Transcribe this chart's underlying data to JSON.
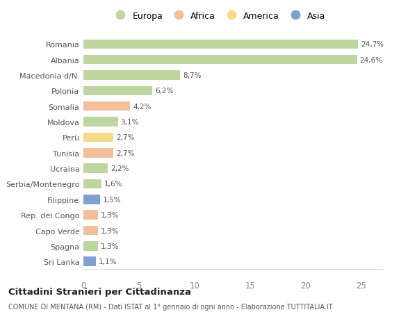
{
  "countries": [
    "Sri Lanka",
    "Spagna",
    "Capo Verde",
    "Rep. del Congo",
    "Filippine",
    "Serbia/Montenegro",
    "Ucraina",
    "Tunisia",
    "Perù",
    "Moldova",
    "Somalia",
    "Polonia",
    "Macedonia d/N.",
    "Albania",
    "Romania"
  ],
  "values": [
    1.1,
    1.3,
    1.3,
    1.3,
    1.5,
    1.6,
    2.2,
    2.7,
    2.7,
    3.1,
    4.2,
    6.2,
    8.7,
    24.6,
    24.7
  ],
  "labels": [
    "1,1%",
    "1,3%",
    "1,3%",
    "1,3%",
    "1,5%",
    "1,6%",
    "2,2%",
    "2,7%",
    "2,7%",
    "3,1%",
    "4,2%",
    "6,2%",
    "8,7%",
    "24,6%",
    "24,7%"
  ],
  "continents": [
    "Asia",
    "Europa",
    "Africa",
    "Africa",
    "Asia",
    "Europa",
    "Europa",
    "Africa",
    "America",
    "Europa",
    "Africa",
    "Europa",
    "Europa",
    "Europa",
    "Europa"
  ],
  "continent_colors": {
    "Europa": "#a8c882",
    "Africa": "#f0a878",
    "America": "#f0d060",
    "Asia": "#5580c0"
  },
  "legend_items": [
    "Europa",
    "Africa",
    "America",
    "Asia"
  ],
  "legend_colors": [
    "#a8c882",
    "#f0a878",
    "#f0d060",
    "#5580c0"
  ],
  "title": "Cittadini Stranieri per Cittadinanza",
  "subtitle": "COMUNE DI MENTANA (RM) - Dati ISTAT al 1° gennaio di ogni anno - Elaborazione TUTTITALIA.IT",
  "xlim": [
    0,
    27
  ],
  "xticks": [
    0,
    5,
    10,
    15,
    20,
    25
  ],
  "background_color": "#ffffff",
  "bar_alpha": 0.75,
  "bar_height": 0.6
}
